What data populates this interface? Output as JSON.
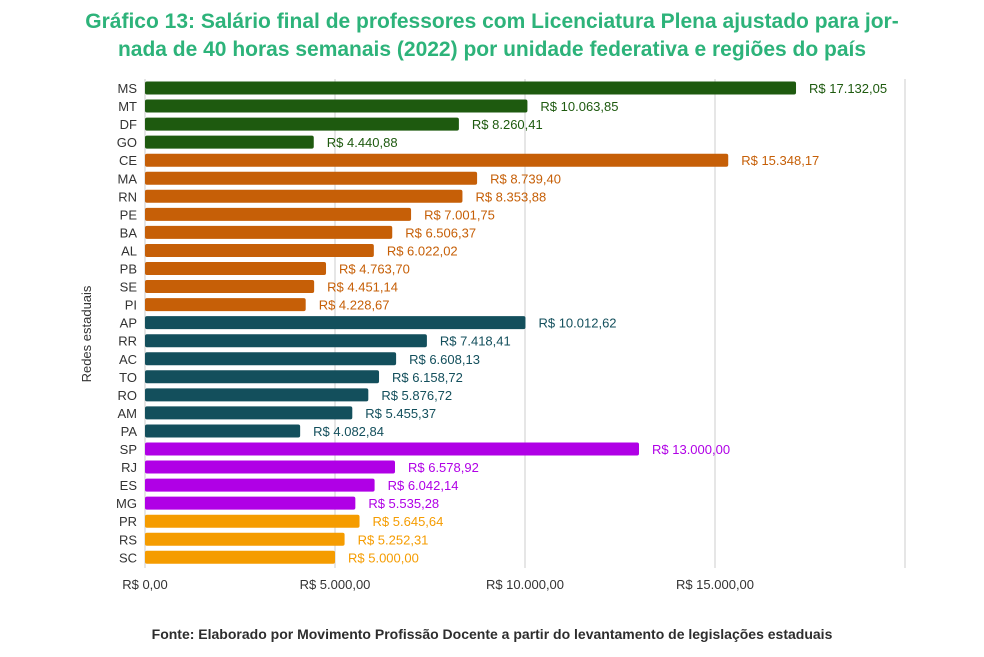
{
  "title": {
    "line1": "Gráfico 13: Salário final de professores com Licenciatura Plena ajustado para jor-",
    "line2": "nada de 40 horas semanais (2022) por unidade federativa e regiões do país"
  },
  "source": "Fonte: Elaborado por Movimento Profissão Docente a partir do levantamento de legislações estaduais",
  "colors": {
    "centro_oeste": "#1e5a0f",
    "nordeste": "#c65f07",
    "norte": "#134f5c",
    "sudeste": "#b000e6",
    "sul": "#f59c00",
    "grid": "#cccccc",
    "text": "#333333"
  },
  "chart_data": {
    "type": "bar",
    "orientation": "horizontal",
    "ylabel": "Redes estaduais",
    "xlabel": "",
    "xlim": [
      0,
      20000
    ],
    "grid": true,
    "x_ticks": [
      {
        "value": 0,
        "label": "R$ 0,00"
      },
      {
        "value": 5000,
        "label": "R$ 5.000,00"
      },
      {
        "value": 10000,
        "label": "R$ 10.000,00"
      },
      {
        "value": 15000,
        "label": "R$ 15.000,00"
      }
    ],
    "bars": [
      {
        "category": "MS",
        "value": 17132.05,
        "label": "R$ 17.132,05",
        "group": "centro_oeste"
      },
      {
        "category": "MT",
        "value": 10063.85,
        "label": "R$ 10.063,85",
        "group": "centro_oeste"
      },
      {
        "category": "DF",
        "value": 8260.41,
        "label": "R$ 8.260,41",
        "group": "centro_oeste"
      },
      {
        "category": "GO",
        "value": 4440.88,
        "label": "R$ 4.440,88",
        "group": "centro_oeste"
      },
      {
        "category": "CE",
        "value": 15348.17,
        "label": "R$ 15.348,17",
        "group": "nordeste"
      },
      {
        "category": "MA",
        "value": 8739.4,
        "label": "R$ 8.739,40",
        "group": "nordeste"
      },
      {
        "category": "RN",
        "value": 8353.88,
        "label": "R$ 8.353,88",
        "group": "nordeste"
      },
      {
        "category": "PE",
        "value": 7001.75,
        "label": "R$ 7.001,75",
        "group": "nordeste"
      },
      {
        "category": "BA",
        "value": 6506.37,
        "label": "R$ 6.506,37",
        "group": "nordeste"
      },
      {
        "category": "AL",
        "value": 6022.02,
        "label": "R$ 6.022,02",
        "group": "nordeste"
      },
      {
        "category": "PB",
        "value": 4763.7,
        "label": "R$ 4.763,70",
        "group": "nordeste"
      },
      {
        "category": "SE",
        "value": 4451.14,
        "label": "R$ 4.451,14",
        "group": "nordeste"
      },
      {
        "category": "PI",
        "value": 4228.67,
        "label": "R$ 4.228,67",
        "group": "nordeste"
      },
      {
        "category": "AP",
        "value": 10012.62,
        "label": "R$ 10.012,62",
        "group": "norte"
      },
      {
        "category": "RR",
        "value": 7418.41,
        "label": "R$ 7.418,41",
        "group": "norte"
      },
      {
        "category": "AC",
        "value": 6608.13,
        "label": "R$ 6.608,13",
        "group": "norte"
      },
      {
        "category": "TO",
        "value": 6158.72,
        "label": "R$ 6.158,72",
        "group": "norte"
      },
      {
        "category": "RO",
        "value": 5876.72,
        "label": "R$ 5.876,72",
        "group": "norte"
      },
      {
        "category": "AM",
        "value": 5455.37,
        "label": "R$ 5.455,37",
        "group": "norte"
      },
      {
        "category": "PA",
        "value": 4082.84,
        "label": "R$ 4.082,84",
        "group": "norte"
      },
      {
        "category": "SP",
        "value": 13000.0,
        "label": "R$ 13.000,00",
        "group": "sudeste"
      },
      {
        "category": "RJ",
        "value": 6578.92,
        "label": "R$ 6.578,92",
        "group": "sudeste"
      },
      {
        "category": "ES",
        "value": 6042.14,
        "label": "R$ 6.042,14",
        "group": "sudeste"
      },
      {
        "category": "MG",
        "value": 5535.28,
        "label": "R$ 5.535,28",
        "group": "sudeste"
      },
      {
        "category": "PR",
        "value": 5645.64,
        "label": "R$ 5.645,64",
        "group": "sul"
      },
      {
        "category": "RS",
        "value": 5252.31,
        "label": "R$ 5.252,31",
        "group": "sul"
      },
      {
        "category": "SC",
        "value": 5000.0,
        "label": "R$ 5.000,00",
        "group": "sul"
      }
    ]
  }
}
